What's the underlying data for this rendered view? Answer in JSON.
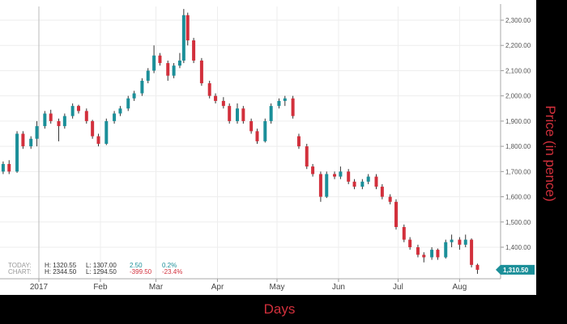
{
  "chart_data": {
    "type": "candlestick",
    "xlabel": "Days",
    "ylabel": "Price (in pence)",
    "ylim": [
      1280,
      2350
    ],
    "yticks": [
      "2,300.00",
      "2,200.00",
      "2,100.00",
      "2,000.00",
      "1,900.00",
      "1,800.00",
      "1,700.00",
      "1,600.00",
      "1,500.00",
      "1,400.00"
    ],
    "ytick_values": [
      2300,
      2200,
      2100,
      2000,
      1900,
      1800,
      1700,
      1600,
      1500,
      1400
    ],
    "xticks": [
      {
        "label": "2017",
        "date": "2017-01-01"
      },
      {
        "label": "Feb",
        "date": "2017-02-01"
      },
      {
        "label": "Mar",
        "date": "2017-03-01"
      },
      {
        "label": "Apr",
        "date": "2017-04-01"
      },
      {
        "label": "May",
        "date": "2017-05-01"
      },
      {
        "label": "Jun",
        "date": "2017-06-01"
      },
      {
        "label": "Jul",
        "date": "2017-07-01"
      },
      {
        "label": "Aug",
        "date": "2017-08-01"
      }
    ],
    "grid": true,
    "up_color": "#1b8f99",
    "down_color": "#d2303c",
    "last_price": {
      "value": 1310.5,
      "label": "1,310.50"
    },
    "candles": [
      [
        "2016-12-14",
        1700,
        1740,
        1690,
        1730
      ],
      [
        "2016-12-17",
        1730,
        1745,
        1690,
        1700
      ],
      [
        "2016-12-21",
        1700,
        1860,
        1695,
        1850
      ],
      [
        "2016-12-24",
        1850,
        1860,
        1790,
        1800
      ],
      [
        "2016-12-28",
        1800,
        1840,
        1790,
        1830
      ],
      [
        "2016-12-31",
        1830,
        1900,
        1800,
        1880
      ],
      [
        "2017-01-04",
        1880,
        1940,
        1870,
        1930
      ],
      [
        "2017-01-07",
        1930,
        1945,
        1890,
        1900
      ],
      [
        "2017-01-11",
        1900,
        1910,
        1820,
        1880
      ],
      [
        "2017-01-14",
        1880,
        1930,
        1870,
        1920
      ],
      [
        "2017-01-18",
        1920,
        1970,
        1910,
        1960
      ],
      [
        "2017-01-21",
        1960,
        1965,
        1930,
        1940
      ],
      [
        "2017-01-25",
        1940,
        1950,
        1890,
        1900
      ],
      [
        "2017-01-28",
        1900,
        1905,
        1830,
        1840
      ],
      [
        "2017-01-31",
        1840,
        1850,
        1800,
        1810
      ],
      [
        "2017-02-04",
        1810,
        1910,
        1805,
        1900
      ],
      [
        "2017-02-08",
        1900,
        1940,
        1890,
        1930
      ],
      [
        "2017-02-11",
        1930,
        1960,
        1920,
        1950
      ],
      [
        "2017-02-15",
        1950,
        2000,
        1940,
        1990
      ],
      [
        "2017-02-18",
        1990,
        2020,
        1980,
        2010
      ],
      [
        "2017-02-22",
        2010,
        2070,
        2000,
        2060
      ],
      [
        "2017-02-25",
        2060,
        2110,
        2050,
        2100
      ],
      [
        "2017-02-28",
        2100,
        2200,
        2090,
        2160
      ],
      [
        "2017-03-03",
        2160,
        2170,
        2120,
        2130
      ],
      [
        "2017-03-07",
        2130,
        2140,
        2060,
        2080
      ],
      [
        "2017-03-10",
        2080,
        2130,
        2070,
        2120
      ],
      [
        "2017-03-13",
        2120,
        2170,
        2110,
        2140
      ],
      [
        "2017-03-15",
        2140,
        2344.5,
        2130,
        2320
      ],
      [
        "2017-03-17",
        2320,
        2330,
        2200,
        2220
      ],
      [
        "2017-03-20",
        2220,
        2230,
        2130,
        2140
      ],
      [
        "2017-03-24",
        2140,
        2150,
        2040,
        2050
      ],
      [
        "2017-03-28",
        2050,
        2060,
        1990,
        2000
      ],
      [
        "2017-03-31",
        2000,
        2010,
        1970,
        1980
      ],
      [
        "2017-04-04",
        1980,
        1995,
        1950,
        1960
      ],
      [
        "2017-04-07",
        1960,
        1970,
        1890,
        1900
      ],
      [
        "2017-04-11",
        1900,
        1970,
        1890,
        1950
      ],
      [
        "2017-04-14",
        1950,
        1960,
        1890,
        1900
      ],
      [
        "2017-04-18",
        1900,
        1910,
        1850,
        1860
      ],
      [
        "2017-04-21",
        1860,
        1870,
        1810,
        1820
      ],
      [
        "2017-04-25",
        1820,
        1910,
        1815,
        1900
      ],
      [
        "2017-04-28",
        1900,
        1970,
        1890,
        1960
      ],
      [
        "2017-05-02",
        1960,
        1990,
        1950,
        1980
      ],
      [
        "2017-05-05",
        1980,
        2000,
        1960,
        1990
      ],
      [
        "2017-05-09",
        1990,
        2000,
        1910,
        1920
      ],
      [
        "2017-05-12",
        1840,
        1850,
        1790,
        1800
      ],
      [
        "2017-05-16",
        1800,
        1810,
        1710,
        1720
      ],
      [
        "2017-05-19",
        1720,
        1730,
        1680,
        1690
      ],
      [
        "2017-05-23",
        1690,
        1700,
        1580,
        1600
      ],
      [
        "2017-05-26",
        1600,
        1700,
        1595,
        1690
      ],
      [
        "2017-05-30",
        1690,
        1700,
        1670,
        1680
      ],
      [
        "2017-06-02",
        1680,
        1720,
        1670,
        1700
      ],
      [
        "2017-06-06",
        1700,
        1710,
        1650,
        1660
      ],
      [
        "2017-06-09",
        1660,
        1670,
        1630,
        1640
      ],
      [
        "2017-06-13",
        1640,
        1670,
        1630,
        1660
      ],
      [
        "2017-06-16",
        1660,
        1690,
        1650,
        1680
      ],
      [
        "2017-06-20",
        1680,
        1690,
        1630,
        1640
      ],
      [
        "2017-06-23",
        1640,
        1650,
        1590,
        1600
      ],
      [
        "2017-06-27",
        1600,
        1610,
        1570,
        1580
      ],
      [
        "2017-06-30",
        1580,
        1590,
        1470,
        1480
      ],
      [
        "2017-07-04",
        1480,
        1490,
        1420,
        1430
      ],
      [
        "2017-07-07",
        1430,
        1440,
        1390,
        1400
      ],
      [
        "2017-07-11",
        1400,
        1410,
        1360,
        1370
      ],
      [
        "2017-07-14",
        1370,
        1380,
        1340,
        1360
      ],
      [
        "2017-07-18",
        1360,
        1400,
        1350,
        1390
      ],
      [
        "2017-07-21",
        1390,
        1395,
        1350,
        1360
      ],
      [
        "2017-07-25",
        1360,
        1430,
        1355,
        1420
      ],
      [
        "2017-07-28",
        1420,
        1450,
        1400,
        1430
      ],
      [
        "2017-08-01",
        1430,
        1440,
        1390,
        1410
      ],
      [
        "2017-08-04",
        1410,
        1450,
        1400,
        1430
      ],
      [
        "2017-08-07",
        1430,
        1435,
        1320,
        1330
      ],
      [
        "2017-08-10",
        1330,
        1335,
        1294.5,
        1310.5
      ]
    ],
    "candle_fields": [
      "date",
      "open",
      "high",
      "low",
      "close"
    ]
  },
  "stats": {
    "today_label": "TODAY:",
    "chart_label": "CHART:",
    "today_high": "H: 1320.55",
    "today_low": "L: 1307.00",
    "today_change": "2.50",
    "today_pct": "0.2%",
    "chart_high": "H: 2344.50",
    "chart_low": "L: 1294.50",
    "chart_change": "-399.50",
    "chart_pct": "-23.4%"
  },
  "colors": {
    "axis_title": "#d2303c",
    "positive": "#1b8f99",
    "negative": "#d2303c"
  }
}
